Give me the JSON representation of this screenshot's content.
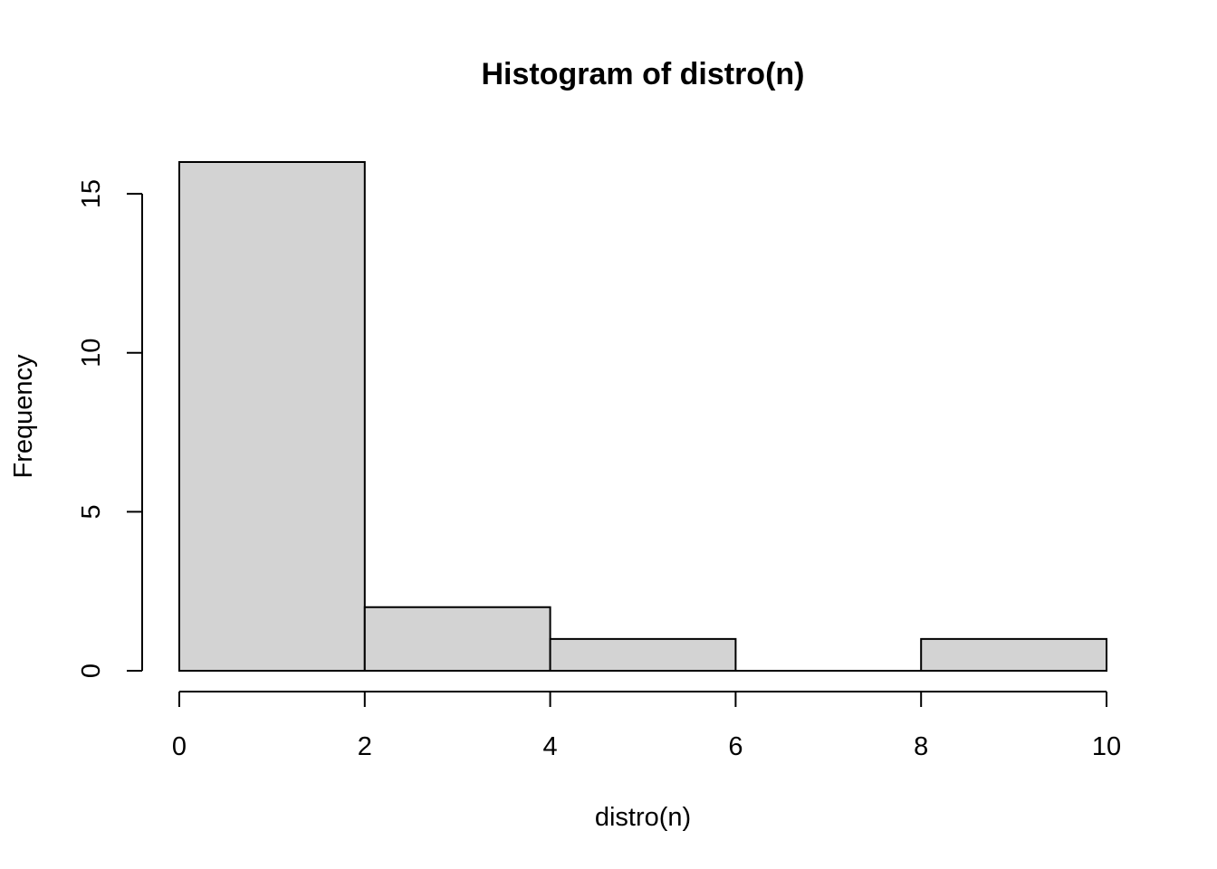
{
  "chart_data": {
    "type": "bar",
    "title": "Histogram of distro(n)",
    "xlabel": "distro(n)",
    "ylabel": "Frequency",
    "bins": [
      {
        "from": 0,
        "to": 2,
        "count": 16
      },
      {
        "from": 2,
        "to": 4,
        "count": 2
      },
      {
        "from": 4,
        "to": 6,
        "count": 1
      },
      {
        "from": 6,
        "to": 8,
        "count": 0
      },
      {
        "from": 8,
        "to": 10,
        "count": 1
      }
    ],
    "xlim": [
      0,
      10
    ],
    "ylim": [
      0,
      16
    ],
    "x_ticks": [
      0,
      2,
      4,
      6,
      8,
      10
    ],
    "y_ticks": [
      0,
      5,
      10,
      15
    ],
    "x_tick_labels": [
      "0",
      "2",
      "4",
      "6",
      "8",
      "10"
    ],
    "y_tick_labels": [
      "0",
      "5",
      "10",
      "15"
    ],
    "grid": false,
    "legend": "none",
    "bar_fill": "#d3d3d3",
    "bar_stroke": "#000000"
  }
}
